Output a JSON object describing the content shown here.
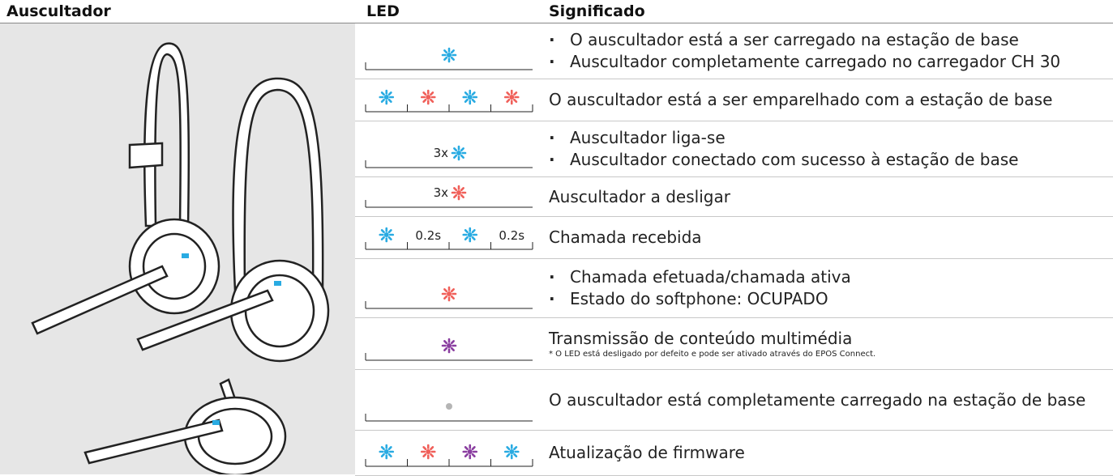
{
  "columns": [
    "Auscultador",
    "LED",
    "Significado"
  ],
  "rows": [
    {
      "led": [
        {
          "color": "#29abe2"
        }
      ],
      "bullets": true,
      "lines": [
        "O auscultador está a ser carregado na estação de base",
        "Auscultador completamente carregado no carregador CH 30"
      ]
    },
    {
      "led": [
        {
          "color": "#29abe2"
        },
        {
          "color": "#f0605a"
        },
        {
          "color": "#29abe2"
        },
        {
          "color": "#f0605a"
        }
      ],
      "lines": [
        "O auscultador está a ser emparelhado com a estação de base"
      ]
    },
    {
      "led": [
        {
          "color": "#29abe2",
          "prefix": "3x"
        }
      ],
      "bullets": true,
      "lines": [
        "Auscultador liga-se",
        "Auscultador conectado com sucesso à estação de base"
      ]
    },
    {
      "led": [
        {
          "color": "#f0605a",
          "prefix": "3x"
        }
      ],
      "lines": [
        "Auscultador a desligar"
      ]
    },
    {
      "led": [
        {
          "color": "#29abe2"
        },
        {
          "label": "0.2s"
        },
        {
          "color": "#29abe2"
        },
        {
          "label": "0.2s"
        }
      ],
      "lines": [
        "Chamada recebida"
      ]
    },
    {
      "led": [
        {
          "color": "#f0605a"
        }
      ],
      "bullets": true,
      "lines": [
        "Chamada efetuada/chamada ativa",
        "Estado do softphone: OCUPADO"
      ]
    },
    {
      "led": [
        {
          "color": "#8a3ea0"
        }
      ],
      "lines": [
        "Transmissão de conteúdo multimédia"
      ],
      "note": "* O LED está desligado por defeito e pode ser ativado através do EPOS Connect."
    },
    {
      "led": [
        {
          "color": "#b5b5b5",
          "shape": "dot"
        }
      ],
      "lines": [
        "O auscultador está completamente carregado na estação de base"
      ]
    },
    {
      "led": [
        {
          "color": "#29abe2"
        },
        {
          "color": "#f0605a"
        },
        {
          "color": "#8a3ea0"
        },
        {
          "color": "#29abe2"
        }
      ],
      "lines": [
        "Atualização de firmware"
      ]
    }
  ]
}
